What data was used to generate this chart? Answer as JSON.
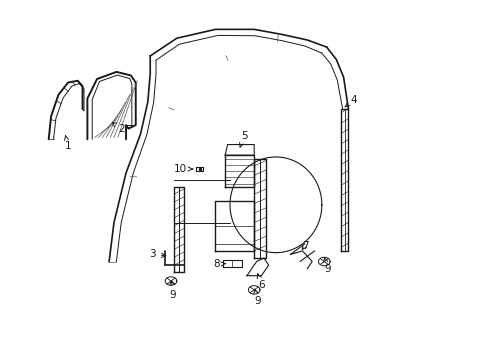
{
  "background_color": "#ffffff",
  "line_color": "#1a1a1a",
  "fig_width": 4.89,
  "fig_height": 3.6,
  "dpi": 100
}
